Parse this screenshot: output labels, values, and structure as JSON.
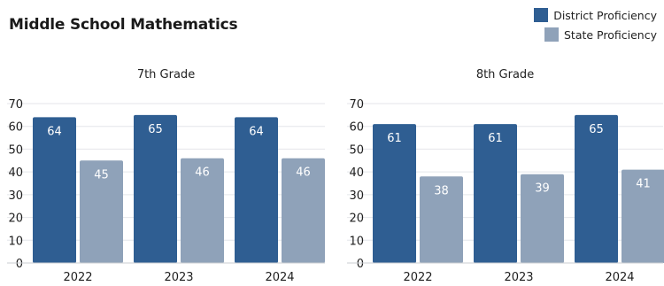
{
  "title": "Middle School Mathematics",
  "colors": {
    "district": "#2f5e92",
    "state": "#8fa2b9",
    "grid": "#e4e6ea"
  },
  "legend": [
    {
      "name": "District Proficiency",
      "color": "#2f5e92"
    },
    {
      "name": "State Proficiency",
      "color": "#8fa2b9"
    }
  ],
  "chart_data": [
    {
      "type": "bar",
      "title": "7th Grade",
      "categories": [
        "2022",
        "2023",
        "2024"
      ],
      "series": [
        {
          "name": "District Proficiency",
          "values": [
            64,
            65,
            64
          ]
        },
        {
          "name": "State Proficiency",
          "values": [
            45,
            46,
            46
          ]
        }
      ],
      "ylim": [
        0,
        70
      ],
      "yticks": [
        0,
        10,
        20,
        30,
        40,
        50,
        60,
        70
      ],
      "grid": true
    },
    {
      "type": "bar",
      "title": "8th Grade",
      "categories": [
        "2022",
        "2023",
        "2024"
      ],
      "series": [
        {
          "name": "District Proficiency",
          "values": [
            61,
            61,
            65
          ]
        },
        {
          "name": "State Proficiency",
          "values": [
            38,
            39,
            41
          ]
        }
      ],
      "ylim": [
        0,
        70
      ],
      "yticks": [
        0,
        10,
        20,
        30,
        40,
        50,
        60,
        70
      ],
      "grid": true
    }
  ]
}
